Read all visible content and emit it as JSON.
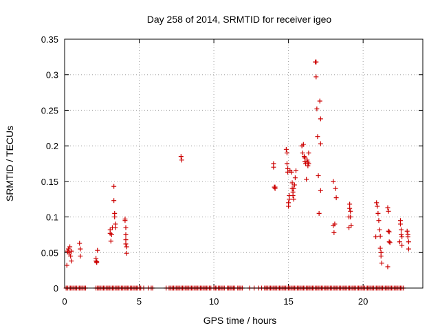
{
  "chart_data": {
    "type": "scatter",
    "title": "Day 258 of 2014, SRMTID for receiver igeo",
    "xlabel": "GPS time / hours",
    "ylabel": "SRMTID / TECUs",
    "xlim": [
      0,
      24
    ],
    "ylim": [
      0,
      0.35
    ],
    "xticks": [
      0,
      5,
      10,
      15,
      20
    ],
    "xtick_labels": [
      "0",
      "5",
      "10",
      "15",
      "20"
    ],
    "yticks": [
      0,
      0.05,
      0.1,
      0.15,
      0.2,
      0.25,
      0.3,
      0.35
    ],
    "ytick_labels": [
      "0",
      "0.05",
      "0.1",
      "0.15",
      "0.2",
      "0.25",
      "0.3",
      "0.35"
    ],
    "grid": true,
    "marker": "plus",
    "color": "#cc0000",
    "series": [
      {
        "name": "SRMTID",
        "x": [
          0.15,
          0.2,
          0.25,
          0.3,
          0.35,
          0.4,
          0.45,
          0.3,
          0.45,
          1.0,
          1.05,
          1.05,
          2.1,
          2.1,
          2.15,
          2.15,
          2.2,
          3.05,
          3.05,
          3.1,
          3.15,
          3.2,
          3.3,
          3.3,
          3.35,
          3.35,
          3.4,
          3.4,
          4.05,
          4.05,
          4.1,
          4.1,
          4.1,
          4.1,
          4.15,
          4.15,
          7.8,
          7.85,
          14.0,
          14.0,
          14.05,
          14.1,
          14.1,
          14.85,
          14.9,
          14.9,
          14.95,
          14.95,
          15.0,
          15.0,
          15.05,
          15.05,
          15.1,
          15.2,
          15.25,
          15.25,
          15.3,
          15.3,
          15.35,
          15.35,
          15.4,
          15.45,
          15.5,
          15.9,
          15.95,
          16.0,
          16.05,
          16.1,
          16.1,
          16.15,
          16.2,
          16.25,
          16.3,
          16.3,
          16.35,
          16.35,
          16.8,
          16.85,
          16.85,
          16.9,
          16.95,
          17.0,
          17.05,
          17.1,
          17.15,
          17.15,
          17.15,
          18.0,
          18.0,
          18.05,
          18.1,
          18.15,
          18.2,
          19.05,
          19.05,
          19.1,
          19.1,
          19.15,
          19.15,
          19.2,
          20.85,
          20.9,
          20.95,
          21.0,
          21.05,
          21.1,
          21.15,
          21.15,
          21.2,
          21.2,
          21.25,
          21.65,
          21.65,
          21.7,
          21.7,
          21.75,
          21.75,
          21.8,
          22.45,
          22.5,
          22.5,
          22.55,
          22.55,
          22.6,
          22.6,
          22.95,
          23.0,
          23.0,
          23.05,
          23.05
        ],
        "y": [
          0.032,
          0.052,
          0.055,
          0.048,
          0.058,
          0.045,
          0.038,
          0.05,
          0.052,
          0.063,
          0.055,
          0.045,
          0.042,
          0.038,
          0.036,
          0.037,
          0.053,
          0.077,
          0.082,
          0.066,
          0.075,
          0.085,
          0.143,
          0.123,
          0.1,
          0.105,
          0.09,
          0.085,
          0.097,
          0.095,
          0.085,
          0.075,
          0.068,
          0.062,
          0.058,
          0.049,
          0.185,
          0.18,
          0.175,
          0.17,
          0.142,
          0.142,
          0.14,
          0.195,
          0.19,
          0.175,
          0.168,
          0.163,
          0.12,
          0.115,
          0.125,
          0.13,
          0.165,
          0.163,
          0.148,
          0.14,
          0.135,
          0.13,
          0.125,
          0.14,
          0.145,
          0.155,
          0.165,
          0.2,
          0.19,
          0.202,
          0.185,
          0.178,
          0.183,
          0.175,
          0.153,
          0.18,
          0.177,
          0.172,
          0.175,
          0.19,
          0.318,
          0.318,
          0.297,
          0.252,
          0.213,
          0.158,
          0.105,
          0.263,
          0.238,
          0.203,
          0.137,
          0.15,
          0.088,
          0.078,
          0.09,
          0.14,
          0.127,
          0.1,
          0.085,
          0.118,
          0.112,
          0.108,
          0.1,
          0.088,
          0.072,
          0.12,
          0.115,
          0.105,
          0.095,
          0.082,
          0.073,
          0.056,
          0.05,
          0.045,
          0.035,
          0.03,
          0.113,
          0.108,
          0.08,
          0.079,
          0.065,
          0.064,
          0.065,
          0.095,
          0.09,
          0.082,
          0.075,
          0.072,
          0.06,
          0.08,
          0.075,
          0.072,
          0.065,
          0.055
        ],
        "zero_x": [
          0.1,
          0.2,
          0.3,
          0.4,
          0.5,
          0.6,
          0.7,
          0.8,
          0.9,
          1.0,
          1.1,
          1.2,
          1.3,
          1.4,
          2.1,
          2.2,
          2.3,
          2.4,
          2.5,
          2.6,
          2.7,
          2.8,
          2.9,
          3.0,
          3.1,
          3.2,
          3.3,
          3.4,
          3.5,
          3.6,
          3.7,
          3.8,
          3.9,
          4.0,
          4.1,
          4.2,
          4.3,
          4.4,
          4.5,
          4.6,
          4.7,
          4.8,
          4.9,
          5.0,
          5.1,
          5.3,
          5.6,
          5.8,
          5.9,
          6.8,
          7.0,
          7.1,
          7.2,
          7.3,
          7.4,
          7.5,
          7.6,
          7.7,
          7.8,
          7.9,
          8.0,
          8.1,
          8.2,
          8.3,
          8.4,
          8.5,
          8.6,
          8.7,
          8.8,
          8.9,
          9.0,
          9.1,
          9.2,
          9.3,
          9.4,
          9.5,
          9.6,
          9.7,
          9.8,
          10.0,
          10.1,
          10.2,
          10.3,
          10.4,
          10.5,
          10.6,
          10.7,
          10.9,
          11.0,
          11.1,
          11.2,
          11.3,
          11.4,
          11.6,
          11.7,
          11.8,
          11.9,
          12.4,
          12.7,
          13.0,
          13.2,
          13.4,
          13.5,
          13.6,
          13.7,
          13.8,
          13.9,
          14.0,
          14.1,
          14.2,
          14.3,
          14.4,
          14.5,
          14.6,
          14.7,
          14.8,
          14.9,
          15.0,
          15.1,
          15.2,
          15.3,
          15.4,
          15.5,
          15.6,
          15.7,
          15.8,
          15.9,
          16.0,
          16.1,
          16.2,
          16.3,
          16.4,
          16.5,
          16.6,
          16.7,
          16.8,
          16.9,
          17.0,
          17.1,
          17.2,
          17.3,
          17.4,
          17.5,
          17.6,
          17.7,
          17.8,
          17.9,
          18.0,
          18.1,
          18.2,
          18.3,
          18.4,
          18.5,
          18.6,
          18.7,
          18.8,
          18.9,
          19.0,
          19.1,
          19.2,
          19.3,
          19.4,
          19.5,
          19.6,
          19.7,
          19.8,
          19.9,
          20.0,
          20.1,
          20.2,
          20.3,
          20.4,
          20.5,
          20.6,
          20.7,
          20.8,
          20.9,
          21.0,
          21.1,
          21.2,
          21.3,
          21.4,
          21.5,
          21.6,
          21.7,
          21.8,
          21.9,
          22.0,
          22.1,
          22.2,
          22.3,
          22.4,
          22.5,
          22.6,
          22.7
        ]
      }
    ]
  }
}
